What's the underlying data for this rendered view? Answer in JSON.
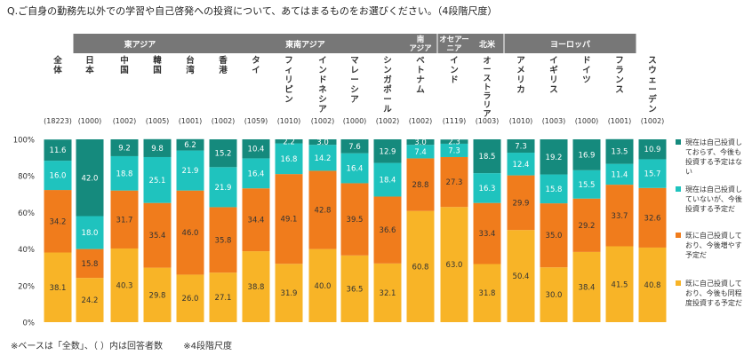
{
  "question": "Q.ご自身の勤務先以外での学習や自己啓発への投資について、あてはまるものをお選びください。（4段階尺度）",
  "notes": [
    "※ベースは「全数」、（ ）内は回答者数",
    "※4段階尺度"
  ],
  "chart_data": {
    "type": "bar",
    "stacked": true,
    "percent": true,
    "ylim": [
      0,
      100
    ],
    "yticks": [
      "0%",
      "20%",
      "40%",
      "60%",
      "80%",
      "100%"
    ],
    "groups": [
      {
        "label": "東アジア",
        "count": 4
      },
      {
        "label": "東南アジア",
        "count": 6
      },
      {
        "label": "南\nアジア",
        "count": 1
      },
      {
        "label": "オセアー\nニア",
        "count": 1
      },
      {
        "label": "北米",
        "count": 1
      },
      {
        "label": "ヨーロッパ",
        "count": 4
      }
    ],
    "categories": [
      "全体",
      "日本",
      "中国",
      "韓国",
      "台湾",
      "香港",
      "タイ",
      "フィリピン",
      "インドネシア",
      "マレーシア",
      "シンガポール",
      "ベトナム",
      "インド",
      "オーストラリア",
      "アメリカ",
      "イギリス",
      "ドイツ",
      "フランス",
      "スウェーデン"
    ],
    "sample_sizes": [
      "(18223)",
      "(1000)",
      "(1002)",
      "(1005)",
      "(1001)",
      "(1002)",
      "(1059)",
      "(1010)",
      "(1002)",
      "(1000)",
      "(1002)",
      "(1002)",
      "(1119)",
      "(1003)",
      "(1010)",
      "(1003)",
      "(1000)",
      "(1001)",
      "(1002)"
    ],
    "series": [
      {
        "name": "既に自己投資しており、今後も同程度投資する予定だ",
        "color": "#f8b427",
        "values": [
          38.1,
          24.2,
          40.3,
          29.8,
          26.0,
          27.1,
          38.8,
          31.9,
          40.0,
          36.5,
          32.1,
          60.8,
          63.0,
          31.8,
          50.4,
          30.0,
          38.4,
          41.5,
          40.8
        ]
      },
      {
        "name": "既に自己投資しており、今後増やす予定だ",
        "color": "#f07c1c",
        "values": [
          34.2,
          15.8,
          31.7,
          35.4,
          46.0,
          35.8,
          34.4,
          49.1,
          42.8,
          39.5,
          36.6,
          28.8,
          27.3,
          33.4,
          29.9,
          35.0,
          29.2,
          33.7,
          32.6
        ]
      },
      {
        "name": "現在は自己投資していないが、今後投資する予定だ",
        "color": "#1fc3be",
        "values": [
          16.0,
          18.0,
          18.8,
          25.1,
          21.9,
          21.9,
          16.4,
          16.8,
          14.2,
          16.4,
          18.4,
          7.4,
          7.3,
          16.3,
          12.4,
          15.8,
          15.5,
          11.4,
          15.7
        ]
      },
      {
        "name": "現在は自己投資しておらず、今後も投資する予定はない",
        "color": "#158a7d",
        "values": [
          11.6,
          42.0,
          9.2,
          9.8,
          6.2,
          15.2,
          10.4,
          2.2,
          3.0,
          7.6,
          12.9,
          3.0,
          2.3,
          18.5,
          7.3,
          19.2,
          16.9,
          13.5,
          10.9
        ]
      }
    ],
    "legend_position": "right"
  }
}
